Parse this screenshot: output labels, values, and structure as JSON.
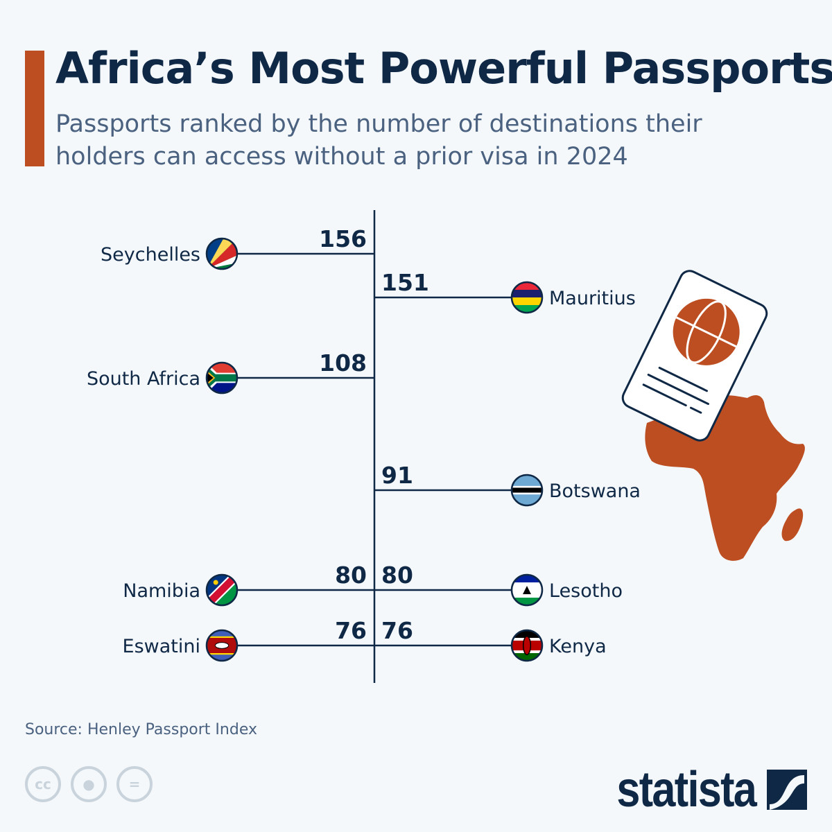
{
  "header": {
    "title": "Africa’s Most Powerful Passports",
    "subtitle": "Passports ranked by the number of destinations their holders can access without a prior visa in 2024"
  },
  "chart_data": {
    "type": "bar",
    "title": "Africa’s Most Powerful Passports",
    "subtitle": "Passports ranked by the number of destinations their holders can access without a prior visa in 2024",
    "categories": [
      "Seychelles",
      "Mauritius",
      "South Africa",
      "Botswana",
      "Namibia",
      "Lesotho",
      "Eswatini",
      "Kenya"
    ],
    "values": [
      156,
      151,
      108,
      91,
      80,
      80,
      76,
      76
    ],
    "sides": [
      "left",
      "right",
      "left",
      "right",
      "left",
      "right",
      "left",
      "right"
    ],
    "flags": [
      "seychelles-flag-icon",
      "mauritius-flag-icon",
      "south-africa-flag-icon",
      "botswana-flag-icon",
      "namibia-flag-icon",
      "lesotho-flag-icon",
      "eswatini-flag-icon",
      "kenya-flag-icon"
    ]
  },
  "colors": {
    "accent": "#bc4e22",
    "text": "#0f2846",
    "subtitle": "#4a6180",
    "background": "#f4f8fb"
  },
  "footer": {
    "source": "Source: Henley Passport Index",
    "license_icons": [
      "cc-icon",
      "attribution-icon",
      "no-derivatives-icon"
    ],
    "cc_label": "cc",
    "logo": "statista"
  }
}
